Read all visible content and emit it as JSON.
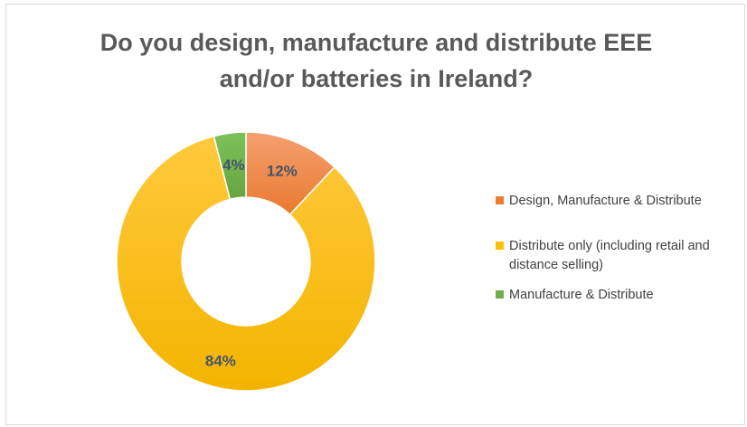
{
  "chart_data": {
    "type": "pie",
    "variant": "donut",
    "title_lines": [
      "Do you design, manufacture and distribute EEE",
      "and/or batteries in Ireland?"
    ],
    "slices": [
      {
        "label": "Design, Manufacture & Distribute",
        "value": 12,
        "display": "12%",
        "color": "#ed7d31"
      },
      {
        "label": "Distribute only (including retail and distance selling)",
        "display": "84%",
        "value": 84,
        "color": "#ffc000"
      },
      {
        "label": "Manufacture & Distribute",
        "value": 4,
        "display": "4%",
        "color": "#70ad47"
      }
    ],
    "legend_position": "right",
    "data_label_color": "#44546a"
  },
  "legend": {
    "items": [
      {
        "label_lines": [
          "Design, Manufacture & Distribute"
        ]
      },
      {
        "label_lines": [
          "Distribute only (including retail and",
          "distance selling)"
        ]
      },
      {
        "label_lines": [
          "Manufacture & Distribute"
        ]
      }
    ]
  }
}
